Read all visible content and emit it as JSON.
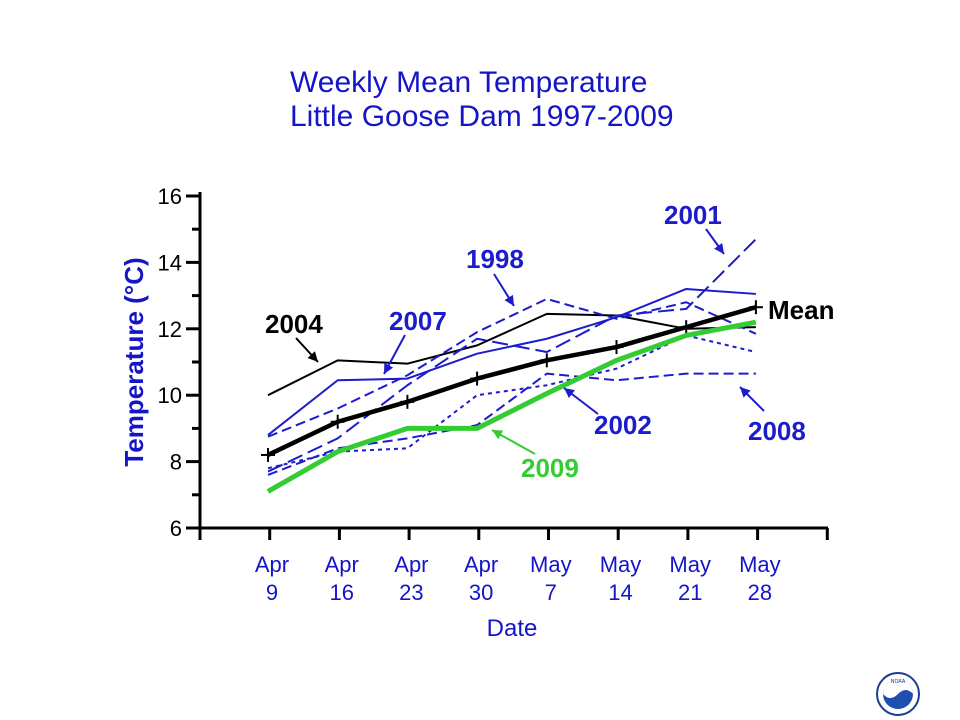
{
  "chart_data": {
    "type": "line",
    "title": [
      "Weekly Mean Temperature",
      "Little Goose Dam 1997-2009"
    ],
    "xlabel": "Date",
    "ylabel": "Temperature (°C)",
    "ylim": [
      6,
      16
    ],
    "yticks": [
      6,
      8,
      10,
      12,
      14,
      16
    ],
    "categories": [
      [
        "Apr",
        "9"
      ],
      [
        "Apr",
        "16"
      ],
      [
        "Apr",
        "23"
      ],
      [
        "Apr",
        "30"
      ],
      [
        "May",
        "7"
      ],
      [
        "May",
        "14"
      ],
      [
        "May",
        "21"
      ],
      [
        "May",
        "28"
      ]
    ],
    "grid": false,
    "series": [
      {
        "name": "2004",
        "color": "#000000",
        "style": "solid",
        "width": 2,
        "values": [
          10.0,
          11.05,
          10.95,
          11.5,
          12.45,
          12.4,
          12.0,
          12.05
        ]
      },
      {
        "name": "2007",
        "color": "#1c1ccc",
        "style": "solid",
        "width": 2,
        "values": [
          8.8,
          10.45,
          10.5,
          11.25,
          11.7,
          12.35,
          13.2,
          13.05
        ]
      },
      {
        "name": "1998",
        "color": "#1c1ccc",
        "style": "dash",
        "width": 2,
        "values": [
          8.75,
          9.6,
          10.6,
          11.9,
          12.9,
          12.3,
          12.8,
          11.85
        ]
      },
      {
        "name": "2001",
        "color": "#1c1ccc",
        "style": "longdash",
        "width": 2,
        "values": [
          7.7,
          8.7,
          10.3,
          11.7,
          11.3,
          12.4,
          12.6,
          14.7
        ]
      },
      {
        "name": "2002",
        "color": "#1c1ccc",
        "style": "dot",
        "width": 2,
        "values": [
          7.8,
          8.3,
          8.4,
          10.0,
          10.3,
          10.8,
          11.8,
          11.3
        ]
      },
      {
        "name": "2008",
        "color": "#1c1ccc",
        "style": "dash",
        "width": 2,
        "values": [
          7.6,
          8.4,
          8.7,
          9.1,
          10.65,
          10.45,
          10.65,
          10.65
        ]
      },
      {
        "name": "Mean",
        "color": "#000000",
        "style": "solid",
        "width": 4.5,
        "markers": "plus",
        "values": [
          8.2,
          9.2,
          9.8,
          10.5,
          11.05,
          11.45,
          12.05,
          12.65
        ]
      },
      {
        "name": "2009",
        "color": "#33cc33",
        "style": "solid",
        "width": 5,
        "values": [
          7.1,
          8.3,
          9.0,
          9.0,
          10.05,
          11.05,
          11.8,
          12.2
        ]
      }
    ],
    "annotations": [
      {
        "text": "2004",
        "color": "#000000",
        "series": "2004",
        "point": 1
      },
      {
        "text": "2007",
        "color": "#1c1ccc",
        "series": "2007",
        "point": 1
      },
      {
        "text": "1998",
        "color": "#1c1ccc",
        "series": "1998",
        "point": 3
      },
      {
        "text": "2001",
        "color": "#1c1ccc",
        "series": "2001",
        "point": 7
      },
      {
        "text": "Mean",
        "color": "#000000",
        "series": "Mean",
        "point": 7
      },
      {
        "text": "2002",
        "color": "#1c1ccc",
        "series": "2002",
        "point": 4
      },
      {
        "text": "2008",
        "color": "#1c1ccc",
        "series": "2008",
        "point": 7
      },
      {
        "text": "2009",
        "color": "#33cc33",
        "series": "2009",
        "point": 3
      }
    ]
  },
  "logo": {
    "name": "noaa-logo",
    "text": "NOAA"
  }
}
